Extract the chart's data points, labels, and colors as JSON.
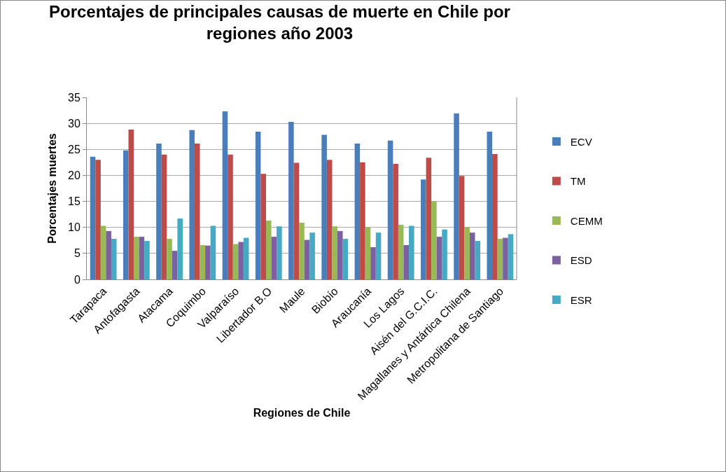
{
  "chart_data": {
    "type": "bar",
    "title": "Porcentajes de principales causas de muerte en Chile por regiones año 2003",
    "xlabel": "Regiones de Chile",
    "ylabel": "Porcentajes muertes",
    "categories": [
      "Tarapaca",
      "Antofagasta",
      "Atacama",
      "Coquimbo",
      "Valparaíso",
      "Libertador B.O",
      "Maule",
      "Biobío",
      "Araucanía",
      "Los Lagos",
      "Aisén del G.C.I.C.",
      "Magallanes y Antártica Chilena",
      "Metropolitana de Santiago"
    ],
    "series": [
      {
        "name": "ECV",
        "color": "#4a7ebb",
        "values": [
          23.6,
          24.8,
          26.1,
          28.7,
          32.3,
          28.4,
          30.3,
          27.8,
          26.1,
          26.7,
          19.2,
          31.9,
          28.4
        ]
      },
      {
        "name": "TM",
        "color": "#be4b48",
        "values": [
          23.0,
          28.8,
          24.0,
          26.1,
          24.0,
          20.3,
          22.4,
          23.0,
          22.5,
          22.2,
          23.4,
          19.9,
          24.1
        ]
      },
      {
        "name": "CEMM",
        "color": "#98b954",
        "values": [
          10.3,
          8.2,
          7.8,
          6.6,
          6.8,
          11.3,
          10.9,
          10.2,
          10.0,
          10.5,
          15.0,
          10.0,
          7.8
        ]
      },
      {
        "name": "ESD",
        "color": "#7d60a0",
        "values": [
          9.3,
          8.2,
          5.5,
          6.5,
          7.2,
          8.2,
          7.6,
          9.3,
          6.2,
          6.6,
          8.2,
          9.0,
          8.0
        ]
      },
      {
        "name": "ESR",
        "color": "#46aac5",
        "values": [
          7.8,
          7.4,
          11.7,
          10.3,
          8.0,
          10.2,
          9.0,
          7.8,
          9.0,
          10.3,
          9.6,
          7.4,
          8.7
        ]
      }
    ],
    "ylim": [
      0,
      35
    ],
    "yticks": [
      0,
      5,
      10,
      15,
      20,
      25,
      30,
      35
    ],
    "grid": "y",
    "legend": "right"
  }
}
